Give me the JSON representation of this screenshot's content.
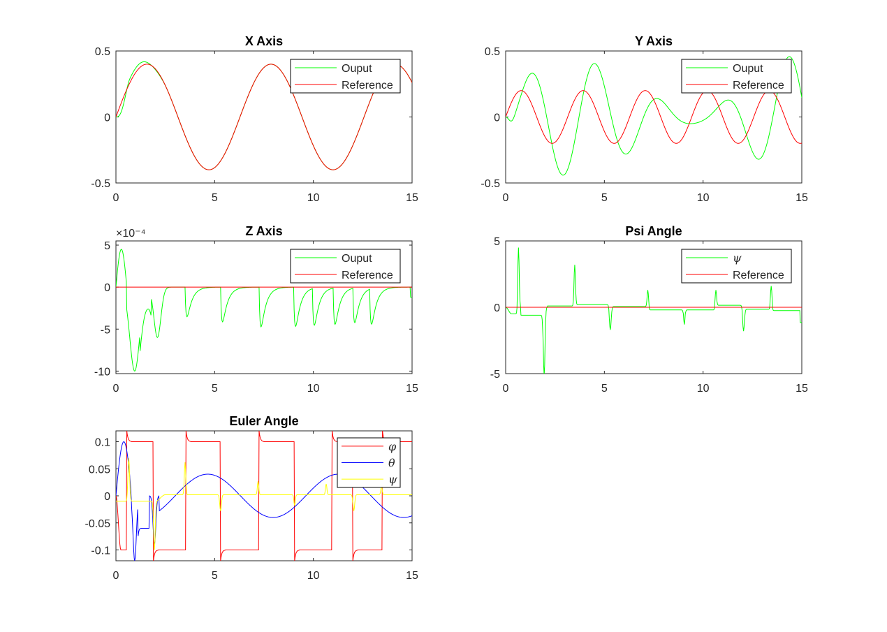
{
  "figure": {
    "background": "#ffffff"
  },
  "chart_data": [
    {
      "id": "x",
      "type": "line",
      "title": "X Axis",
      "xlim": [
        0,
        15
      ],
      "ylim": [
        -0.5,
        0.5
      ],
      "xticks": [
        0,
        5,
        10,
        15
      ],
      "xtick_labels": [
        "0",
        "5",
        "10",
        "15"
      ],
      "yticks": [
        -0.5,
        0,
        0.5
      ],
      "ytick_labels": [
        "-0.5",
        "0",
        "0.5"
      ],
      "exponent_label": null,
      "legend_placement": "top-right",
      "series": [
        {
          "name": "Ouput",
          "color": "#00ff00",
          "key": "x_out"
        },
        {
          "name": "Reference",
          "color": "#ff0000",
          "key": "x_ref"
        }
      ]
    },
    {
      "id": "y",
      "type": "line",
      "title": "Y Axis",
      "xlim": [
        0,
        15
      ],
      "ylim": [
        -0.5,
        0.5
      ],
      "xticks": [
        0,
        5,
        10,
        15
      ],
      "xtick_labels": [
        "0",
        "5",
        "10",
        "15"
      ],
      "yticks": [
        -0.5,
        0,
        0.5
      ],
      "ytick_labels": [
        "-0.5",
        "0",
        "0.5"
      ],
      "exponent_label": null,
      "legend_placement": "top-right",
      "series": [
        {
          "name": "Ouput",
          "color": "#00ff00",
          "key": "y_out"
        },
        {
          "name": "Reference",
          "color": "#ff0000",
          "key": "y_ref"
        }
      ]
    },
    {
      "id": "z",
      "type": "line",
      "title": "Z Axis",
      "xlim": [
        0,
        15
      ],
      "ylim": [
        -10.3,
        5.5
      ],
      "xticks": [
        0,
        5,
        10,
        15
      ],
      "xtick_labels": [
        "0",
        "5",
        "10",
        "15"
      ],
      "yticks": [
        -10,
        -5,
        0,
        5
      ],
      "ytick_labels": [
        "-10",
        "-5",
        "0",
        "5"
      ],
      "exponent_label": "×10⁻⁴",
      "legend_placement": "top-right",
      "series": [
        {
          "name": "Ouput",
          "color": "#00ff00",
          "key": "z_out"
        },
        {
          "name": "Reference",
          "color": "#ff0000",
          "key": "z_ref"
        }
      ]
    },
    {
      "id": "psi",
      "type": "line",
      "title": "Psi Angle",
      "xlim": [
        0,
        15
      ],
      "ylim": [
        -5,
        5
      ],
      "xticks": [
        0,
        5,
        10,
        15
      ],
      "xtick_labels": [
        "0",
        "5",
        "10",
        "15"
      ],
      "yticks": [
        -5,
        0,
        5
      ],
      "ytick_labels": [
        "-5",
        "0",
        "5"
      ],
      "exponent_label": null,
      "legend_placement": "top-right",
      "series": [
        {
          "name": "ψ",
          "greek": true,
          "color": "#00ff00",
          "key": "psi_out"
        },
        {
          "name": "Reference",
          "color": "#ff0000",
          "key": "psi_ref"
        }
      ]
    },
    {
      "id": "euler",
      "type": "line",
      "title": "Euler Angle",
      "xlim": [
        0,
        15
      ],
      "ylim": [
        -0.12,
        0.12
      ],
      "xticks": [
        0,
        5,
        10,
        15
      ],
      "xtick_labels": [
        "0",
        "5",
        "10",
        "15"
      ],
      "yticks": [
        -0.1,
        -0.05,
        0,
        0.05,
        0.1
      ],
      "ytick_labels": [
        "-0.1",
        "-0.05",
        "0",
        "0.05",
        "0.1"
      ],
      "exponent_label": null,
      "legend_placement": "top-right",
      "series": [
        {
          "name": "φ",
          "greek": true,
          "color": "#ff0000",
          "key": "phi"
        },
        {
          "name": "θ",
          "greek": true,
          "color": "#0000ff",
          "key": "theta"
        },
        {
          "name": "ψ",
          "greek": true,
          "color": "#ffff00",
          "key": "psi_small"
        }
      ]
    }
  ]
}
